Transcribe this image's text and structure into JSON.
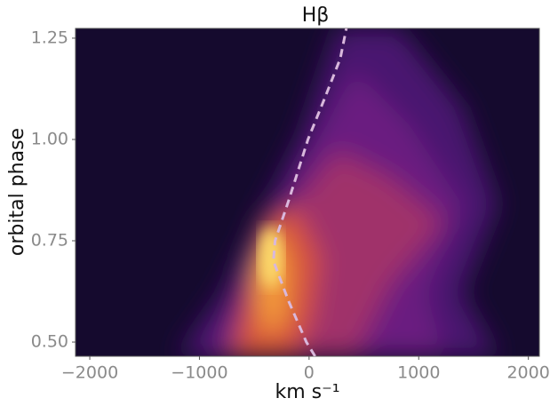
{
  "chart_data": {
    "type": "line",
    "title": "Hβ",
    "xlabel": "km s⁻¹",
    "ylabel": "orbital phase",
    "xlim": [
      -2130,
      2100
    ],
    "ylim": [
      0.465,
      1.274
    ],
    "xticks": [
      {
        "value": -2000,
        "label": "−2000"
      },
      {
        "value": -1000,
        "label": "−1000"
      },
      0,
      1000,
      2000
    ],
    "yticks": [
      {
        "value": 0.5,
        "label": "0.50"
      },
      {
        "value": 0.75,
        "label": "0.75"
      },
      {
        "value": 1.0,
        "label": "1.00"
      },
      {
        "value": 1.25,
        "label": "1.25"
      }
    ],
    "series": [
      {
        "color": "#d9b8dc",
        "x": [
          55,
          -25,
          -185,
          -325,
          -310,
          -185,
          -10,
          140,
          285,
          340
        ],
        "y": [
          0.465,
          0.5,
          0.6,
          0.7,
          0.75,
          0.85,
          1.0,
          1.1,
          1.2,
          1.274
        ]
      }
    ]
  }
}
